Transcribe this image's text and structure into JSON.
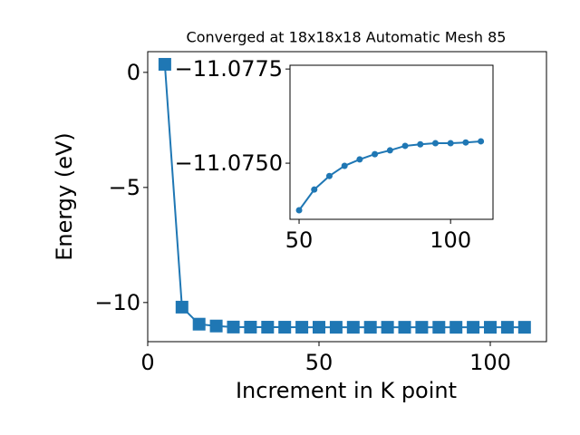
{
  "chart_data": [
    {
      "type": "line",
      "title": "Converged at 18x18x18 Automatic Mesh 85",
      "x_label": "Increment in K point",
      "y_label": "Energy (eV)",
      "marker": "square",
      "color": "#1f77b4",
      "x": [
        5,
        10,
        15,
        20,
        25,
        30,
        35,
        40,
        45,
        50,
        55,
        60,
        65,
        70,
        75,
        80,
        85,
        90,
        95,
        100,
        105,
        110
      ],
      "values": [
        0.35,
        -10.2,
        -10.94,
        -11.02,
        -11.065,
        -11.069,
        -11.071,
        -11.072,
        -11.073,
        -11.0738,
        -11.0743,
        -11.0747,
        -11.0749,
        -11.0751,
        -11.0752,
        -11.0753,
        -11.0755,
        -11.0755,
        -11.0755,
        -11.0755,
        -11.0756,
        -11.0756
      ],
      "xlim": [
        0,
        116.4
      ],
      "ylim": [
        -11.7,
        0.9
      ],
      "xticks": [
        0,
        50,
        100
      ],
      "yticks": [
        {
          "value": 0,
          "label": "0"
        },
        {
          "value": -5,
          "label": "−5"
        },
        {
          "value": -10,
          "label": "−10"
        }
      ]
    },
    {
      "type": "line",
      "marker": "circle",
      "color": "#1f77b4",
      "x": [
        50,
        55,
        60,
        65,
        70,
        75,
        80,
        85,
        90,
        95,
        100,
        105,
        110
      ],
      "values": [
        -11.07375,
        -11.0743,
        -11.07466,
        -11.07493,
        -11.0751,
        -11.07524,
        -11.07534,
        -11.07546,
        -11.0755,
        -11.07553,
        -11.07553,
        -11.07555,
        -11.07558
      ],
      "xlim": [
        47,
        114
      ],
      "ylim": [
        -11.07351,
        -11.0776
      ],
      "xticks": [
        50,
        100
      ],
      "yticks": [
        {
          "value": -11.0775,
          "label": "−11.0775"
        },
        {
          "value": -11.075,
          "label": "−11.0750"
        }
      ]
    }
  ]
}
